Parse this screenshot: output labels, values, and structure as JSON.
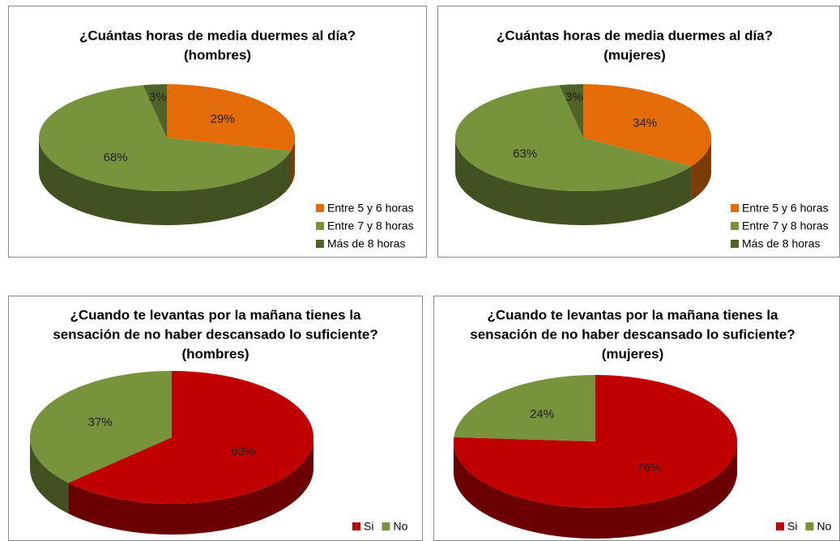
{
  "chart_data": [
    {
      "type": "pie",
      "title": [
        "¿Cuántas horas de media duermes al día?",
        "(hombres)"
      ],
      "categories": [
        "Entre 5 y 6 horas",
        "Entre 7 y 8 horas",
        "Más de 8 horas"
      ],
      "values": [
        29,
        68,
        3
      ],
      "value_labels": [
        "29%",
        "68%",
        "3%"
      ],
      "colors": [
        "#e36c09",
        "#77933c",
        "#4f6228"
      ],
      "legend": "bottom-right"
    },
    {
      "type": "pie",
      "title": [
        "¿Cuántas horas de media duermes al día?",
        "(mujeres)"
      ],
      "categories": [
        "Entre 5 y 6 horas",
        "Entre 7 y 8 horas",
        "Más de 8 horas"
      ],
      "values": [
        34,
        63,
        3
      ],
      "value_labels": [
        "34%",
        "63%",
        "3%"
      ],
      "colors": [
        "#e36c09",
        "#77933c",
        "#4f6228"
      ],
      "legend": "bottom-right"
    },
    {
      "type": "pie",
      "title": [
        "¿Cuando te levantas por la mañana tienes la",
        "sensación de no haber descansado lo suficiente?",
        "(hombres)"
      ],
      "categories": [
        "Si",
        "No"
      ],
      "values": [
        63,
        37
      ],
      "value_labels": [
        "63%",
        "37%"
      ],
      "colors": [
        "#c00000",
        "#77933c"
      ],
      "legend": "bottom-right"
    },
    {
      "type": "pie",
      "title": [
        "¿Cuando te levantas por la mañana tienes la",
        "sensación de no haber descansado lo suficiente?",
        "(mujeres)"
      ],
      "categories": [
        "Si",
        "No"
      ],
      "values": [
        76,
        24
      ],
      "value_labels": [
        "76%",
        "24%"
      ],
      "colors": [
        "#c00000",
        "#77933c"
      ],
      "legend": "bottom-right"
    }
  ]
}
